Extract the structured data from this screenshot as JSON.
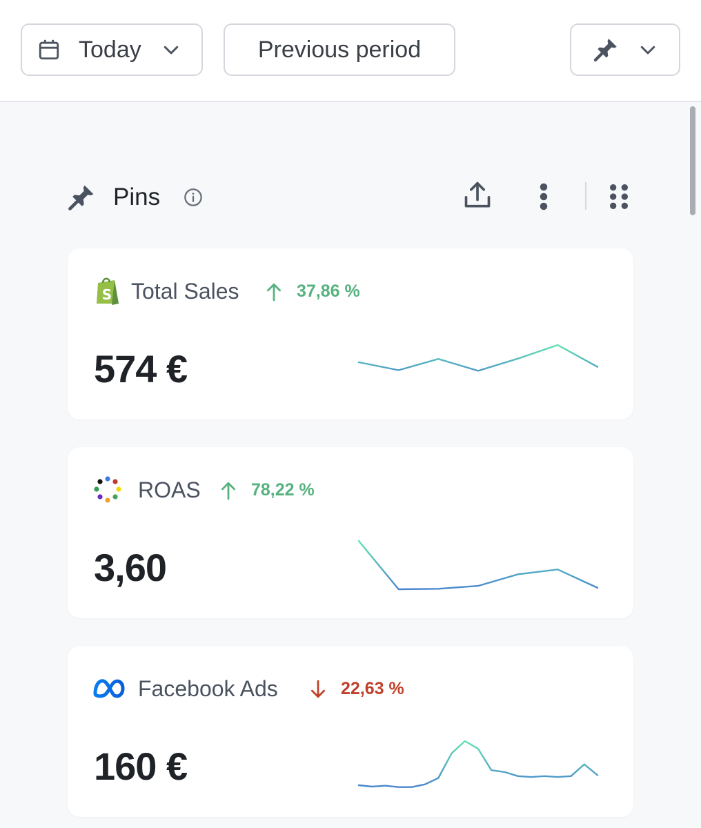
{
  "toolbar": {
    "date_label": "Today",
    "compare_label": "Previous period"
  },
  "section": {
    "title": "Pins"
  },
  "cards": [
    {
      "label": "Total Sales",
      "delta": "37,86 %",
      "trend": "up",
      "value": "574 €",
      "sparkline": [
        0.52,
        0.76,
        0.42,
        0.78,
        0.41,
        0.0,
        0.66
      ]
    },
    {
      "label": "ROAS",
      "delta": "78,22 %",
      "trend": "up",
      "value": "3,60",
      "sparkline": [
        0.0,
        1.0,
        0.99,
        0.93,
        0.69,
        0.59,
        0.97
      ]
    },
    {
      "label": "Facebook Ads",
      "delta": "22,63 %",
      "trend": "down",
      "value": "160 €",
      "sparkline": [
        0.97,
        1.0,
        0.98,
        1.01,
        1.01,
        0.95,
        0.81,
        0.27,
        0.0,
        0.17,
        0.64,
        0.68,
        0.77,
        0.79,
        0.77,
        0.79,
        0.77,
        0.51,
        0.75
      ]
    }
  ],
  "colors": {
    "up": "#56b27f",
    "down": "#c0412a",
    "spark_start": "#4a86cf",
    "spark_end": "#62e3b0"
  }
}
